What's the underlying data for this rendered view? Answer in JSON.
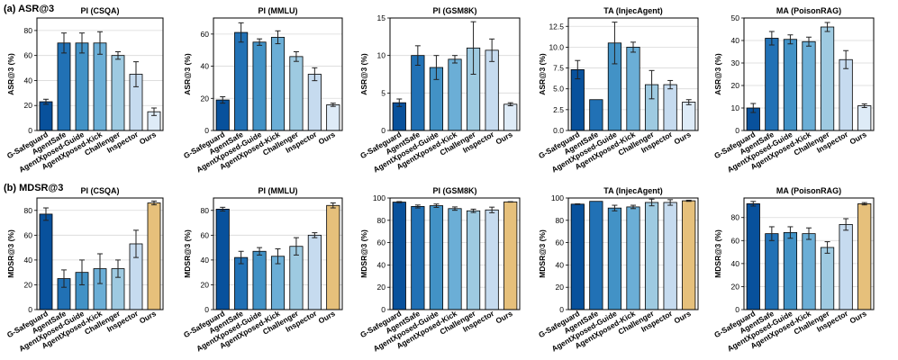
{
  "rows": [
    {
      "label": "(a) ASR@3",
      "ylabel": "ASR@3 (%)"
    },
    {
      "label": "(b) MDSR@3",
      "ylabel": "MDSR@3 (%)"
    }
  ],
  "categories": [
    "G-Safeguard",
    "AgentSafe",
    "AgentXposed-Guide",
    "AgentXposed-Kick",
    "Challenger",
    "Inspector",
    "Ours"
  ],
  "colors": [
    "#08519c",
    "#2171b5",
    "#4292c6",
    "#6baed6",
    "#9ecae1",
    "#c6dbef",
    "#e6c07b"
  ],
  "colors_note_row_a_ours": "#deebf7",
  "chart_data": [
    {
      "type": "bar",
      "row": 0,
      "title": "PI (CSQA)",
      "ylabel": "ASR@3 (%)",
      "ylim": [
        0,
        90
      ],
      "ticks": [
        0,
        20,
        40,
        60,
        80
      ],
      "values": [
        23,
        70,
        70,
        70,
        60,
        45,
        15
      ],
      "errors": [
        2,
        8,
        8,
        9,
        3,
        10,
        3
      ]
    },
    {
      "type": "bar",
      "row": 0,
      "title": "PI (MMLU)",
      "ylabel": "ASR@3 (%)",
      "ylim": [
        0,
        70
      ],
      "ticks": [
        0,
        20,
        40,
        60
      ],
      "values": [
        19,
        61,
        55,
        58,
        46,
        35,
        16
      ],
      "errors": [
        2,
        6,
        2,
        4,
        3,
        4,
        1
      ]
    },
    {
      "type": "bar",
      "row": 0,
      "title": "PI (GSM8K)",
      "ylabel": "ASR@3 (%)",
      "ylim": [
        0,
        15
      ],
      "ticks": [
        0,
        5,
        10,
        15
      ],
      "values": [
        3.7,
        10.0,
        8.4,
        9.5,
        11.0,
        10.7,
        3.5
      ],
      "errors": [
        0.5,
        1.3,
        1.6,
        0.5,
        3.5,
        1.5,
        0.2
      ]
    },
    {
      "type": "bar",
      "row": 0,
      "title": "TA (InjecAgent)",
      "ylabel": "ASR@3 (%)",
      "ylim": [
        0,
        13.5
      ],
      "ticks": [
        0,
        2.5,
        5.0,
        7.5,
        10.0,
        12.5
      ],
      "tick_decimals": 1,
      "values": [
        7.3,
        3.7,
        10.5,
        10.0,
        5.5,
        5.5,
        3.4
      ],
      "errors": [
        1.1,
        0,
        2.5,
        0.6,
        1.7,
        0.5,
        0.3
      ]
    },
    {
      "type": "bar",
      "row": 0,
      "title": "MA (PoisonRAG)",
      "ylabel": "ASR@3 (%)",
      "ylim": [
        0,
        50
      ],
      "ticks": [
        0,
        10,
        20,
        30,
        40,
        50
      ],
      "values": [
        10,
        41,
        40.5,
        39.5,
        46,
        31.5,
        11
      ],
      "errors": [
        2,
        3,
        2,
        2,
        2,
        4,
        0.8
      ]
    },
    {
      "type": "bar",
      "row": 1,
      "title": "PI (CSQA)",
      "ylabel": "MDSR@3 (%)",
      "ylim": [
        0,
        90
      ],
      "ticks": [
        0,
        20,
        40,
        60,
        80
      ],
      "values": [
        77,
        25,
        30,
        33,
        33,
        53,
        86
      ],
      "errors": [
        5,
        7,
        10,
        12,
        7,
        11,
        1.5
      ]
    },
    {
      "type": "bar",
      "row": 1,
      "title": "PI (MMLU)",
      "ylabel": "MDSR@3 (%)",
      "ylim": [
        0,
        90
      ],
      "ticks": [
        0,
        20,
        40,
        60,
        80
      ],
      "values": [
        81,
        42,
        47,
        43,
        51,
        60,
        84
      ],
      "errors": [
        1.5,
        5,
        3,
        6,
        7,
        2,
        2
      ]
    },
    {
      "type": "bar",
      "row": 1,
      "title": "PI (GSM8K)",
      "ylabel": "MDSR@3 (%)",
      "ylim": [
        0,
        100
      ],
      "ticks": [
        0,
        20,
        40,
        60,
        80,
        100
      ],
      "values": [
        96.3,
        92.4,
        93.1,
        90.5,
        88.5,
        89.3,
        96.5
      ],
      "errors": [
        0.5,
        1.3,
        1.5,
        1.5,
        1.5,
        2.5,
        0.2
      ]
    },
    {
      "type": "bar",
      "row": 1,
      "title": "TA (InjecAgent)",
      "ylabel": "MDSR@3 (%)",
      "ylim": [
        0,
        100
      ],
      "ticks": [
        0,
        20,
        40,
        60,
        80,
        100
      ],
      "values": [
        94.5,
        97.0,
        91.0,
        92.0,
        96.0,
        96.0,
        97.5
      ],
      "errors": [
        0.3,
        0,
        2.5,
        1.5,
        3,
        2.5,
        0.5
      ]
    },
    {
      "type": "bar",
      "row": 1,
      "title": "MA (PoisonRAG)",
      "ylabel": "MDSR@3 (%)",
      "ylim": [
        0,
        97
      ],
      "ticks": [
        0,
        20,
        40,
        60,
        80
      ],
      "values": [
        92,
        66,
        67,
        66,
        54,
        74,
        92
      ],
      "errors": [
        2,
        6,
        5,
        5,
        5,
        5,
        1
      ]
    }
  ]
}
